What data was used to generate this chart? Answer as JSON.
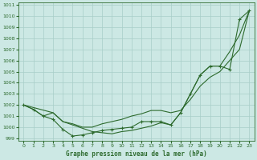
{
  "background_color": "#cce8e4",
  "grid_color": "#a8cec8",
  "line_color": "#2d6a2d",
  "title": "Graphe pression niveau de la mer (hPa)",
  "xlim": [
    -0.5,
    23.5
  ],
  "ylim": [
    998.8,
    1011.2
  ],
  "xticks": [
    0,
    1,
    2,
    3,
    4,
    5,
    6,
    7,
    8,
    9,
    10,
    11,
    12,
    13,
    14,
    15,
    16,
    17,
    18,
    19,
    20,
    21,
    22,
    23
  ],
  "yticks": [
    999,
    1000,
    1001,
    1002,
    1003,
    1004,
    1005,
    1006,
    1007,
    1008,
    1009,
    1010,
    1011
  ],
  "series1_x": [
    0,
    1,
    2,
    3,
    4,
    5,
    6,
    7,
    8,
    9,
    10,
    11,
    12,
    13,
    14,
    15,
    16,
    17,
    18,
    19,
    20,
    21,
    22,
    23
  ],
  "series1_y": [
    1002,
    1001.6,
    1001.0,
    1000.7,
    999.8,
    999.2,
    999.3,
    999.5,
    999.7,
    999.8,
    999.9,
    1000.0,
    1000.5,
    1000.5,
    1000.5,
    1000.2,
    1001.3,
    1003.0,
    1004.7,
    1005.5,
    1005.5,
    1005.2,
    1009.7,
    1010.5
  ],
  "series2_x": [
    0,
    1,
    2,
    3,
    4,
    5,
    6,
    7,
    8,
    9,
    10,
    11,
    12,
    13,
    14,
    15,
    16,
    17,
    18,
    19,
    20,
    21,
    22,
    23
  ],
  "series2_y": [
    1002,
    1001.6,
    1001.0,
    1001.3,
    1000.5,
    1000.3,
    1000.0,
    1000.0,
    1000.3,
    1000.5,
    1000.7,
    1001.0,
    1001.2,
    1001.5,
    1001.5,
    1001.3,
    1001.5,
    1002.5,
    1003.7,
    1004.5,
    1005.0,
    1006.0,
    1007.0,
    1010.5
  ],
  "series3_x": [
    0,
    3,
    4,
    5,
    6,
    7,
    8,
    9,
    10,
    11,
    12,
    13,
    14,
    15,
    16,
    17,
    18,
    19,
    20,
    21,
    22,
    23
  ],
  "series3_y": [
    1002,
    1001.3,
    1000.5,
    1000.2,
    999.9,
    999.6,
    999.5,
    999.4,
    999.6,
    999.7,
    999.9,
    1000.1,
    1000.4,
    1000.2,
    1001.3,
    1003.0,
    1004.7,
    1005.5,
    1005.5,
    1006.8,
    1008.3,
    1010.5
  ]
}
